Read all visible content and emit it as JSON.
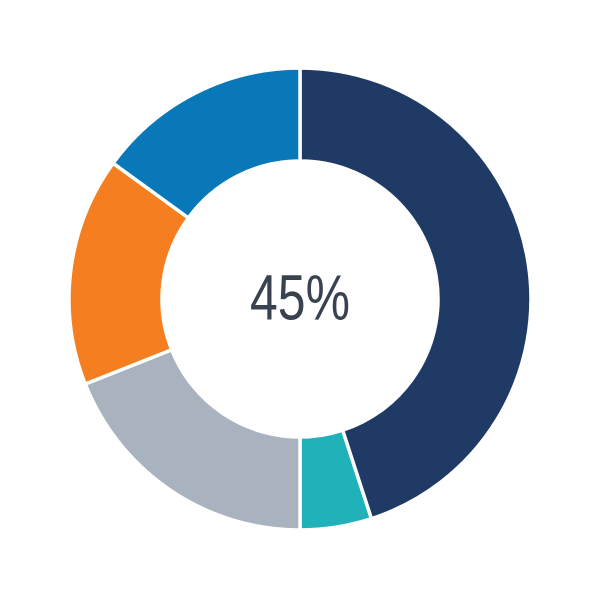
{
  "chart_data": {
    "type": "pie",
    "subtype": "donut",
    "title": "",
    "center_label": "45%",
    "center_label_color": "#394350",
    "start_angle_deg": 0,
    "direction": "clockwise",
    "legend": "none",
    "inner_radius_ratio": 0.597,
    "separator_color": "#FFFFFF",
    "segments": [
      {
        "name": "navy",
        "value_pct": 45,
        "color": "#203A66"
      },
      {
        "name": "teal",
        "value_pct": 5,
        "color": "#21B2B9"
      },
      {
        "name": "gray",
        "value_pct": 19,
        "color": "#A9B2BF"
      },
      {
        "name": "orange",
        "value_pct": 16,
        "color": "#F47E20"
      },
      {
        "name": "light-blue",
        "value_pct": 15,
        "color": "#0878B8"
      }
    ]
  }
}
